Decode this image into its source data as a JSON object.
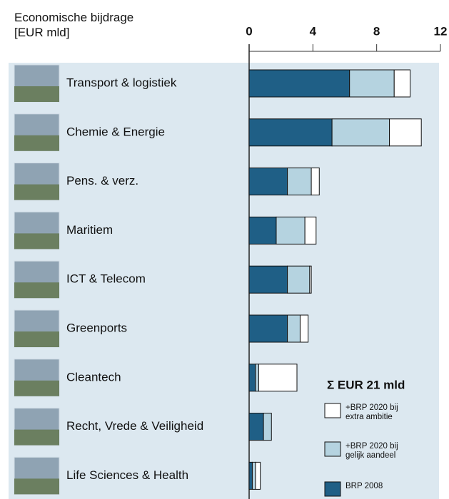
{
  "chart_data": {
    "type": "stacked-bar-horizontal",
    "title": "Economische bijdrage [EUR mld]",
    "categories": [
      "Transport & logistiek",
      "Chemie & Energie",
      "Pens. & verz.",
      "Maritiem",
      "ICT & Telecom",
      "Greenports",
      "Cleantech",
      "Recht, Vrede & Veiligheid",
      "Life Sciences & Health"
    ],
    "series": [
      {
        "name": "BRP 2008",
        "color": "#1f5f86",
        "values": [
          6.3,
          5.2,
          2.4,
          1.7,
          2.4,
          2.4,
          0.4,
          0.9,
          0.2
        ]
      },
      {
        "name": "+BRP 2020 bij gelijk aandeel",
        "color": "#b5d3e0",
        "values": [
          2.8,
          3.6,
          1.5,
          1.8,
          1.4,
          0.8,
          0.2,
          0.5,
          0.2
        ]
      },
      {
        "name": "+BRP 2020 bij extra ambitie",
        "color": "#ffffff",
        "values": [
          1.0,
          2.0,
          0.5,
          0.7,
          0.1,
          0.5,
          2.4,
          0,
          0.3
        ]
      }
    ],
    "xlim": [
      0,
      12
    ],
    "xticks": [
      0,
      4,
      8,
      12
    ],
    "annotation": "Σ EUR 21 mld"
  }
}
